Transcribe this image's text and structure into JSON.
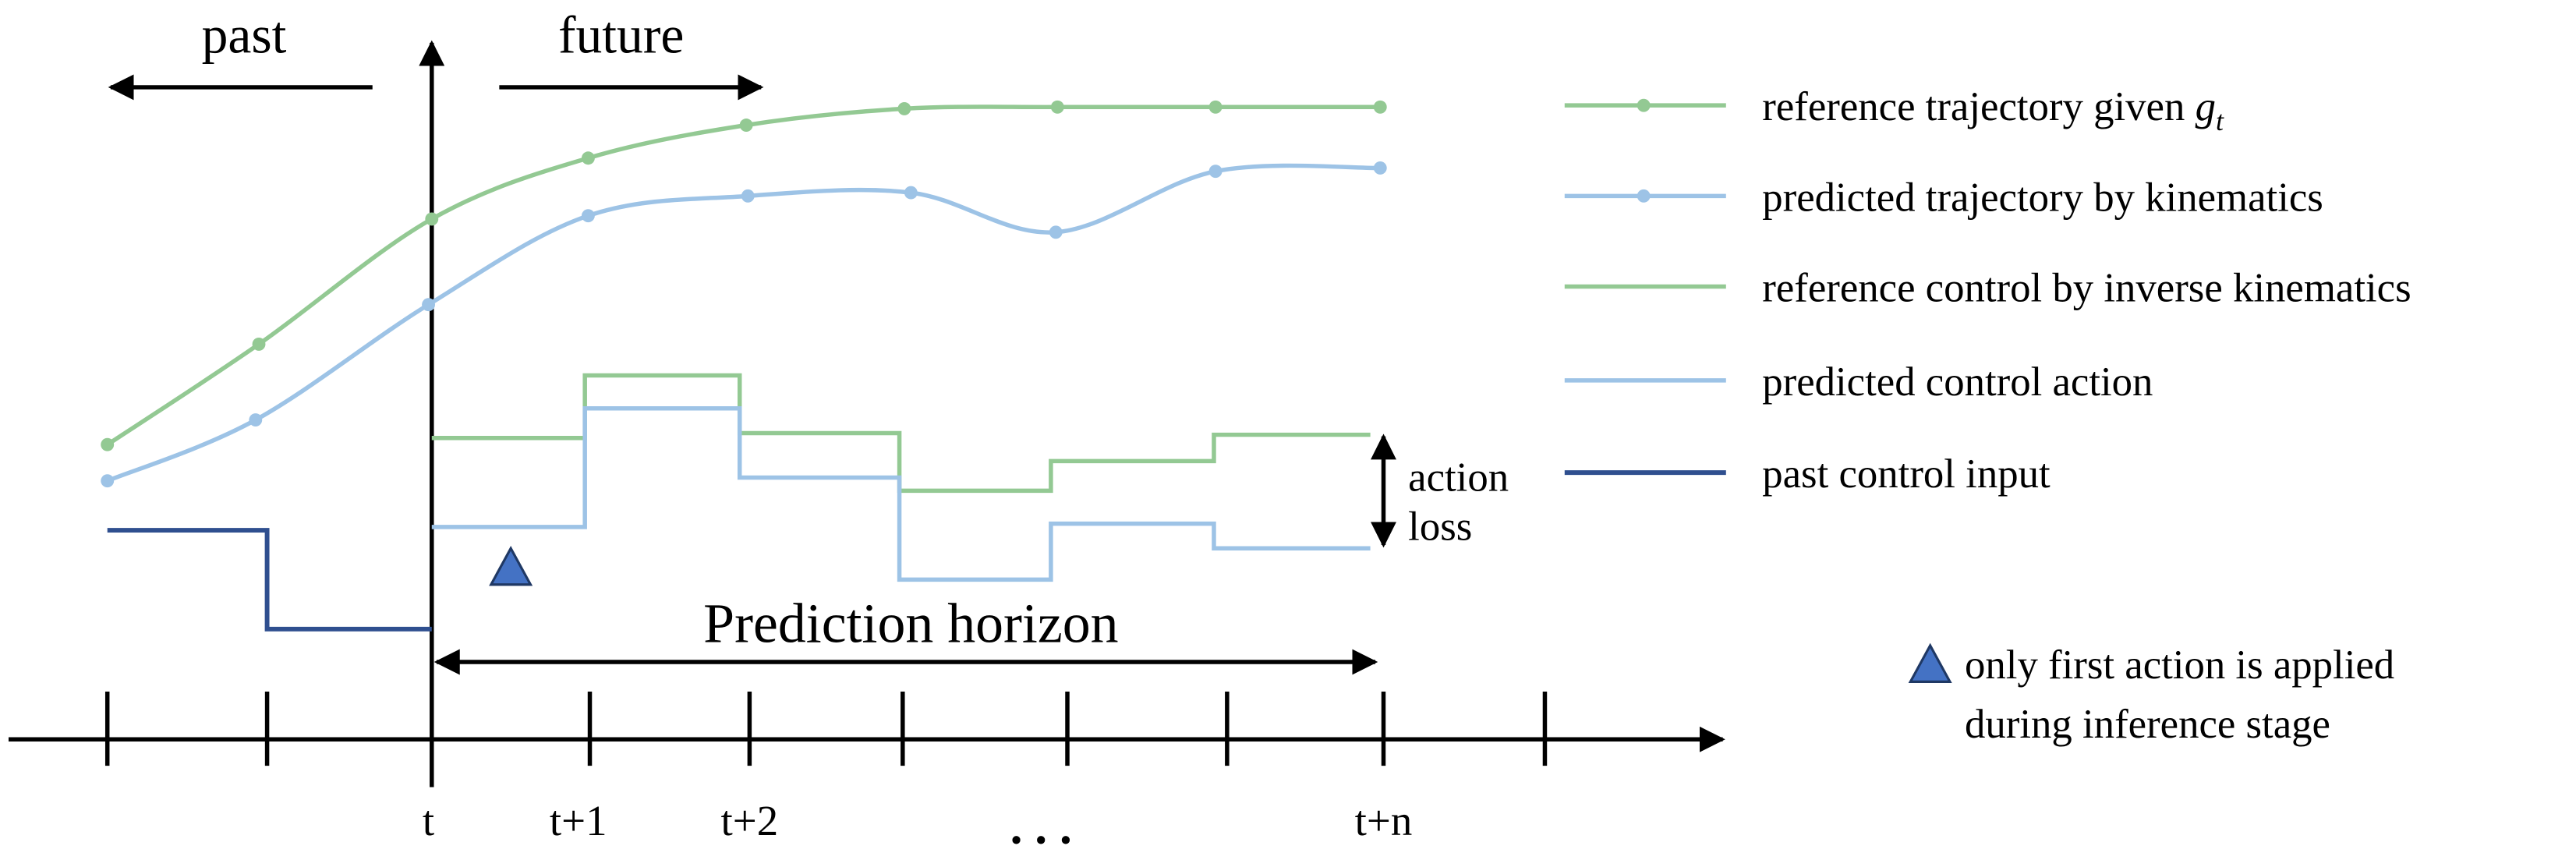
{
  "labels": {
    "past": "past",
    "future": "future",
    "horizon": "Prediction horizon",
    "action_loss": [
      "action",
      "loss"
    ]
  },
  "ticks": [
    "t",
    "t+1",
    "t+2",
    ". . .",
    "t+n"
  ],
  "legend": {
    "items": [
      {
        "label": "reference trajectory given",
        "math": {
          "base": "g",
          "sub": "t"
        }
      },
      {
        "label": "predicted trajectory by kinematics"
      },
      {
        "label": "reference control by inverse kinematics"
      },
      {
        "label": "predicted control action"
      },
      {
        "label": "past control input"
      }
    ]
  },
  "note": [
    "only first action is applied",
    "during inference stage"
  ]
}
